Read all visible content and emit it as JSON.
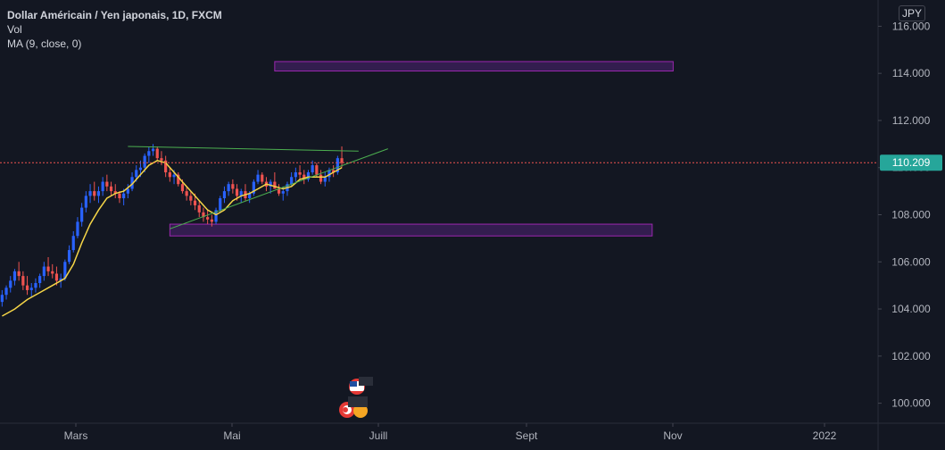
{
  "legend": {
    "title": "Dollar Américain / Yen japonais, 1D, FXCM",
    "volume_label": "Vol",
    "ma_label": "MA (9, close, 0)"
  },
  "currency_badge": "JPY",
  "colors": {
    "background": "#131722",
    "up_candle": "#2962ff",
    "down_candle": "#ef5350",
    "ma_line": "#f5d547",
    "trend_line": "#4caf50",
    "zone_fill": "#3a1e57",
    "zone_border": "#9c27b0",
    "price_line": "#ef5350",
    "price_label_bg": "#26a69a",
    "axis_text": "#b2b5be"
  },
  "chart_data": {
    "type": "candlestick",
    "symbol": "USD/JPY",
    "ylim": [
      99.0,
      117.0
    ],
    "y_ticks": [
      "100.000",
      "102.000",
      "104.000",
      "106.000",
      "108.000",
      "110.000",
      "112.000",
      "114.000",
      "116.000"
    ],
    "x_ticks": [
      "Mars",
      "Mai",
      "Juill",
      "Sept",
      "Nov",
      "2022"
    ],
    "last_price": "110.209",
    "candles": [
      [
        104.3,
        104.8,
        104.1,
        104.6
      ],
      [
        104.6,
        105.0,
        104.4,
        104.9
      ],
      [
        104.9,
        105.4,
        104.7,
        105.2
      ],
      [
        105.2,
        105.7,
        105.0,
        105.6
      ],
      [
        105.6,
        106.0,
        105.2,
        105.4
      ],
      [
        105.4,
        105.6,
        104.8,
        105.0
      ],
      [
        105.0,
        105.4,
        104.6,
        104.8
      ],
      [
        104.8,
        105.1,
        104.5,
        104.9
      ],
      [
        104.9,
        105.3,
        104.7,
        105.1
      ],
      [
        105.1,
        105.5,
        104.9,
        105.4
      ],
      [
        105.4,
        106.0,
        105.2,
        105.8
      ],
      [
        105.8,
        106.2,
        105.4,
        105.6
      ],
      [
        105.6,
        105.9,
        105.3,
        105.5
      ],
      [
        105.5,
        105.8,
        105.0,
        105.2
      ],
      [
        105.2,
        105.5,
        104.9,
        105.3
      ],
      [
        105.3,
        106.1,
        105.2,
        106.0
      ],
      [
        106.0,
        106.7,
        105.9,
        106.5
      ],
      [
        106.5,
        107.3,
        106.4,
        107.1
      ],
      [
        107.1,
        107.9,
        107.0,
        107.7
      ],
      [
        107.7,
        108.5,
        107.5,
        108.3
      ],
      [
        108.3,
        109.0,
        108.1,
        108.8
      ],
      [
        108.8,
        109.3,
        108.5,
        109.0
      ],
      [
        109.0,
        109.4,
        108.6,
        108.8
      ],
      [
        108.8,
        109.2,
        108.5,
        109.0
      ],
      [
        109.0,
        109.6,
        108.8,
        109.4
      ],
      [
        109.4,
        109.7,
        109.0,
        109.2
      ],
      [
        109.2,
        109.4,
        108.8,
        109.0
      ],
      [
        109.0,
        109.3,
        108.7,
        108.9
      ],
      [
        108.9,
        109.0,
        108.5,
        108.7
      ],
      [
        108.7,
        109.1,
        108.4,
        108.9
      ],
      [
        108.9,
        109.3,
        108.7,
        109.1
      ],
      [
        109.1,
        109.8,
        109.0,
        109.6
      ],
      [
        109.6,
        110.1,
        109.4,
        109.9
      ],
      [
        109.9,
        110.3,
        109.6,
        110.0
      ],
      [
        110.0,
        110.6,
        109.8,
        110.5
      ],
      [
        110.5,
        110.9,
        110.2,
        110.7
      ],
      [
        110.7,
        111.0,
        110.5,
        110.8
      ],
      [
        110.8,
        110.9,
        110.3,
        110.4
      ],
      [
        110.4,
        110.7,
        110.1,
        110.3
      ],
      [
        110.3,
        110.5,
        109.6,
        109.8
      ],
      [
        109.8,
        110.0,
        109.4,
        109.6
      ],
      [
        109.6,
        109.9,
        109.3,
        109.7
      ],
      [
        109.7,
        109.8,
        109.2,
        109.3
      ],
      [
        109.3,
        109.5,
        108.9,
        109.0
      ],
      [
        109.0,
        109.2,
        108.6,
        108.8
      ],
      [
        108.8,
        109.0,
        108.4,
        108.6
      ],
      [
        108.6,
        108.9,
        108.2,
        108.4
      ],
      [
        108.4,
        108.6,
        107.9,
        108.1
      ],
      [
        108.1,
        108.3,
        107.7,
        107.9
      ],
      [
        107.9,
        108.2,
        107.6,
        107.8
      ],
      [
        107.8,
        108.0,
        107.5,
        107.7
      ],
      [
        107.7,
        108.3,
        107.6,
        108.2
      ],
      [
        108.2,
        108.8,
        108.1,
        108.7
      ],
      [
        108.7,
        109.2,
        108.5,
        109.0
      ],
      [
        109.0,
        109.4,
        108.8,
        109.3
      ],
      [
        109.3,
        109.5,
        108.9,
        109.1
      ],
      [
        109.1,
        109.3,
        108.6,
        108.8
      ],
      [
        108.8,
        109.1,
        108.5,
        109.0
      ],
      [
        109.0,
        109.3,
        108.6,
        108.7
      ],
      [
        108.7,
        109.0,
        108.5,
        108.9
      ],
      [
        108.9,
        109.5,
        108.8,
        109.4
      ],
      [
        109.4,
        109.9,
        109.3,
        109.7
      ],
      [
        109.7,
        109.8,
        109.3,
        109.4
      ],
      [
        109.4,
        109.6,
        109.0,
        109.2
      ],
      [
        109.2,
        109.5,
        108.9,
        109.4
      ],
      [
        109.4,
        109.8,
        109.2,
        109.1
      ],
      [
        109.1,
        109.3,
        108.8,
        108.9
      ],
      [
        108.9,
        109.2,
        108.6,
        109.0
      ],
      [
        109.0,
        109.4,
        108.8,
        109.3
      ],
      [
        109.3,
        109.8,
        109.2,
        109.6
      ],
      [
        109.6,
        110.0,
        109.4,
        109.8
      ],
      [
        109.8,
        110.1,
        109.5,
        109.7
      ],
      [
        109.7,
        109.9,
        109.3,
        109.5
      ],
      [
        109.5,
        109.9,
        109.4,
        109.8
      ],
      [
        109.8,
        110.3,
        109.7,
        110.1
      ],
      [
        110.1,
        110.2,
        109.6,
        109.7
      ],
      [
        109.7,
        109.9,
        109.3,
        109.4
      ],
      [
        109.4,
        109.8,
        109.2,
        109.6
      ],
      [
        109.6,
        110.0,
        109.4,
        109.9
      ],
      [
        109.9,
        110.1,
        109.6,
        109.8
      ],
      [
        109.8,
        110.5,
        109.7,
        110.4
      ],
      [
        110.4,
        110.9,
        110.0,
        110.2
      ]
    ],
    "moving_average": [
      [
        0,
        103.7
      ],
      [
        3,
        104.0
      ],
      [
        6,
        104.4
      ],
      [
        9,
        104.7
      ],
      [
        12,
        105.0
      ],
      [
        15,
        105.3
      ],
      [
        17,
        105.9
      ],
      [
        19,
        106.8
      ],
      [
        21,
        107.6
      ],
      [
        23,
        108.2
      ],
      [
        25,
        108.7
      ],
      [
        27,
        108.9
      ],
      [
        29,
        109.0
      ],
      [
        31,
        109.3
      ],
      [
        33,
        109.7
      ],
      [
        35,
        110.1
      ],
      [
        37,
        110.3
      ],
      [
        39,
        110.2
      ],
      [
        41,
        109.8
      ],
      [
        43,
        109.4
      ],
      [
        45,
        109.0
      ],
      [
        47,
        108.6
      ],
      [
        49,
        108.2
      ],
      [
        51,
        108.0
      ],
      [
        53,
        108.2
      ],
      [
        55,
        108.6
      ],
      [
        57,
        108.8
      ],
      [
        59,
        108.9
      ],
      [
        61,
        109.1
      ],
      [
        63,
        109.3
      ],
      [
        65,
        109.2
      ],
      [
        67,
        109.1
      ],
      [
        69,
        109.2
      ],
      [
        71,
        109.5
      ],
      [
        73,
        109.6
      ],
      [
        75,
        109.6
      ],
      [
        77,
        109.6
      ],
      [
        79,
        109.8
      ],
      [
        81,
        110.0
      ]
    ],
    "zones": [
      {
        "i0": 65,
        "i1": 160,
        "top": 114.5,
        "bottom": 114.1
      },
      {
        "i0": 40,
        "i1": 155,
        "top": 107.6,
        "bottom": 107.1
      }
    ],
    "trend_lines": [
      {
        "i0": 30,
        "v0": 110.9,
        "i1": 85,
        "v1": 110.7
      },
      {
        "i0": 40,
        "v0": 107.4,
        "i1": 92,
        "v1": 110.8
      }
    ]
  }
}
